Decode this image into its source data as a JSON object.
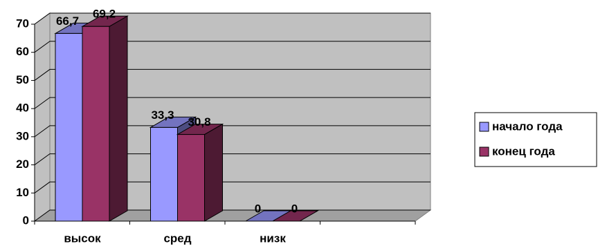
{
  "chart_data": {
    "type": "bar3d",
    "categories": [
      "высок",
      "сред",
      "низк"
    ],
    "series": [
      {
        "name": "начало года",
        "color": "#9999ff",
        "values": [
          66.7,
          33.3,
          0
        ],
        "value_labels": [
          "66,7",
          "33,3",
          "0"
        ]
      },
      {
        "name": "конец года",
        "color": "#993366",
        "values": [
          69.2,
          30.8,
          0
        ],
        "value_labels": [
          "69,2",
          "30,8",
          "0"
        ]
      }
    ],
    "ylim": [
      0,
      70
    ],
    "yticks": [
      0,
      10,
      20,
      30,
      40,
      50,
      60,
      70
    ],
    "grid": true,
    "legend": "right"
  }
}
